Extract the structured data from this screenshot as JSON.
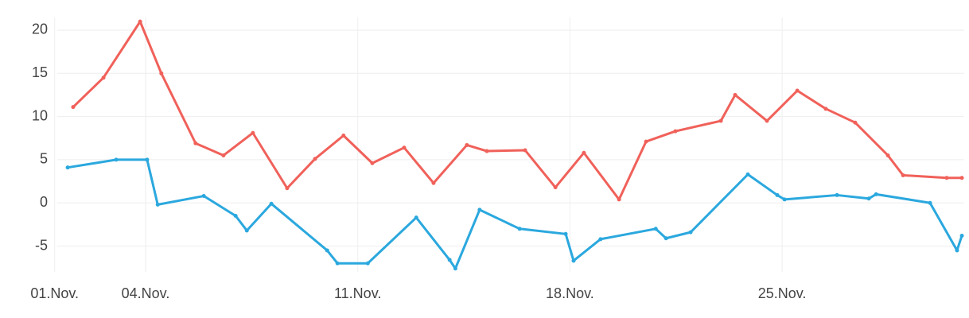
{
  "chart_data": {
    "type": "line",
    "xlim": [
      1,
      31
    ],
    "xticks": [
      {
        "value": 1,
        "label": "01.Nov."
      },
      {
        "value": 4,
        "label": "04.Nov."
      },
      {
        "value": 11,
        "label": "11.Nov."
      },
      {
        "value": 18,
        "label": "18.Nov."
      },
      {
        "value": 25,
        "label": "25.Nov."
      }
    ],
    "ylim": [
      -8,
      21.5
    ],
    "yticks": [
      -5,
      0,
      5,
      10,
      15,
      20
    ],
    "grid": true,
    "series": [
      {
        "color": "#f0615a",
        "x": [
          1.61,
          2.61,
          3.82,
          4.52,
          5.65,
          6.57,
          7.54,
          8.67,
          9.59,
          10.53,
          11.48,
          12.53,
          13.5,
          14.6,
          15.26,
          16.52,
          17.52,
          18.46,
          19.62,
          20.51,
          21.48,
          22.98,
          23.45,
          24.5,
          25.5,
          26.44,
          27.41,
          28.49,
          28.99,
          30.43,
          30.93
        ],
        "values": [
          11.1,
          14.5,
          21.0,
          15.0,
          6.9,
          5.5,
          8.1,
          1.7,
          5.1,
          7.8,
          4.6,
          6.4,
          2.3,
          6.7,
          6.0,
          6.1,
          1.8,
          5.8,
          0.4,
          7.1,
          8.3,
          9.5,
          12.5,
          9.5,
          13.0,
          10.9,
          9.3,
          5.5,
          3.2,
          2.9,
          2.9
        ]
      },
      {
        "color": "#2ba8de",
        "x": [
          1.43,
          3.03,
          4.05,
          4.4,
          5.92,
          6.97,
          7.34,
          8.15,
          9.99,
          10.33,
          11.33,
          12.93,
          14.03,
          14.22,
          15.02,
          16.34,
          17.86,
          18.12,
          19.01,
          20.83,
          21.17,
          21.98,
          23.87,
          24.84,
          25.08,
          26.81,
          27.86,
          28.1,
          29.88,
          30.77,
          30.93
        ],
        "values": [
          4.1,
          5.0,
          5.0,
          -0.2,
          0.8,
          -1.5,
          -3.2,
          -0.1,
          -5.5,
          -7.0,
          -7.0,
          -1.7,
          -6.6,
          -7.6,
          -0.8,
          -3.0,
          -3.6,
          -6.7,
          -4.2,
          -3.0,
          -4.1,
          -3.4,
          3.3,
          0.9,
          0.4,
          0.9,
          0.5,
          1.0,
          0.0,
          -5.5,
          -3.8
        ]
      }
    ]
  }
}
